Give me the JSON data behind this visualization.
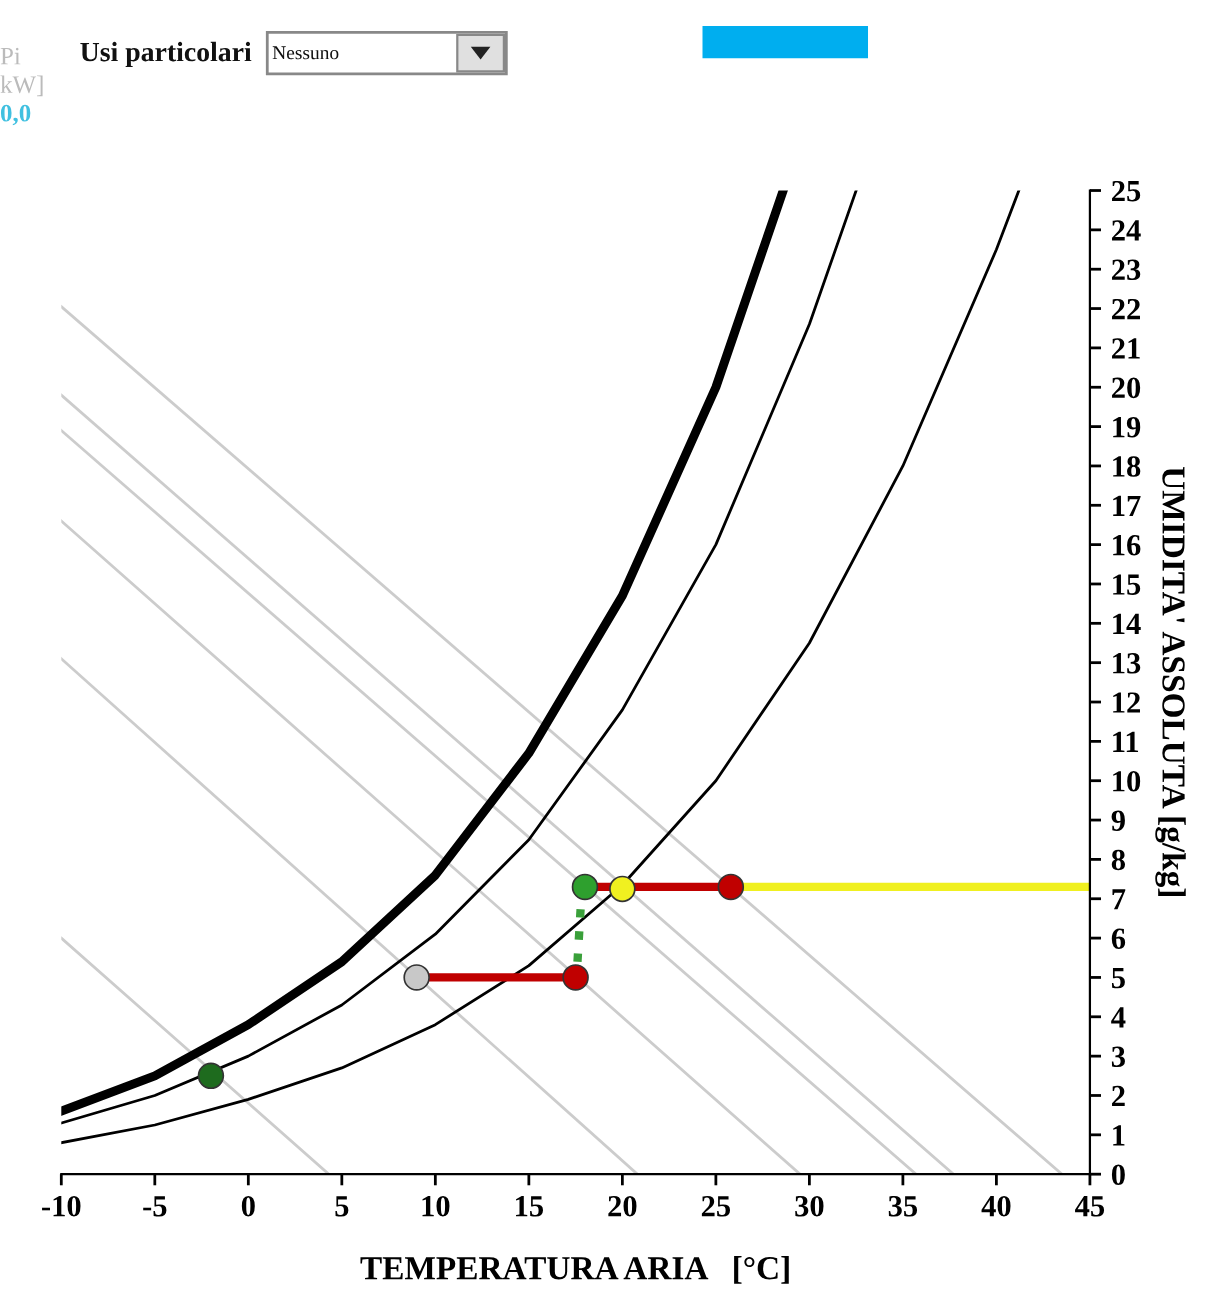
{
  "chart_data": {
    "type": "line",
    "xlabel": "TEMPERATURA ARIA   [°C]",
    "ylabel": "UMIDITA' ASSOLUTA [g/kg]",
    "xlim": [
      -10,
      45
    ],
    "ylim": [
      0,
      25
    ],
    "xticks": [
      -10,
      -5,
      0,
      5,
      10,
      15,
      20,
      25,
      30,
      35,
      40,
      45
    ],
    "yticks": [
      0,
      1,
      2,
      3,
      4,
      5,
      6,
      7,
      8,
      9,
      10,
      11,
      12,
      13,
      14,
      15,
      16,
      17,
      18,
      19,
      20,
      21,
      22,
      23,
      24,
      25
    ],
    "grid": false,
    "annotations": [
      "Pi",
      "kW]",
      "0,0",
      "Usi particolari",
      "Nessuno"
    ],
    "series": [
      {
        "color": "#cccccc",
        "x": [
          -10,
          4.3
        ],
        "values": [
          6.0,
          0
        ]
      },
      {
        "type": "line",
        "color": "#cccccc",
        "x": [
          -10,
          20.8
        ],
        "values": [
          13.1,
          0
        ]
      },
      {
        "type": "line",
        "color": "#cccccc",
        "x": [
          -10,
          29.5
        ],
        "values": [
          16.6,
          0
        ]
      },
      {
        "type": "line",
        "color": "#cccccc",
        "x": [
          -10,
          35.7
        ],
        "values": [
          18.9,
          0
        ]
      },
      {
        "type": "line",
        "color": "#cccccc",
        "x": [
          -10,
          37.7
        ],
        "values": [
          19.8,
          0
        ]
      },
      {
        "type": "line",
        "color": "#cccccc",
        "x": [
          -10,
          43.5
        ],
        "values": [
          22.05,
          0
        ]
      },
      {
        "type": "line",
        "color": "#000000",
        "x": [
          -10,
          -5,
          0,
          5,
          10,
          15,
          20,
          25,
          28.6
        ],
        "values": [
          1.6,
          2.5,
          3.8,
          5.4,
          7.6,
          10.7,
          14.7,
          20.0,
          25
        ]
      },
      {
        "type": "line",
        "color": "#000000",
        "x": [
          -10,
          -5,
          0,
          5,
          10,
          15,
          20,
          25,
          30,
          32.5
        ],
        "values": [
          1.3,
          2.0,
          3.0,
          4.3,
          6.1,
          8.5,
          11.8,
          16.0,
          21.6,
          25
        ]
      },
      {
        "type": "line",
        "color": "#000000",
        "x": [
          -10,
          -5,
          0,
          5,
          10,
          15,
          20,
          25,
          30,
          35,
          40,
          41.2
        ],
        "values": [
          0.8,
          1.25,
          1.9,
          2.7,
          3.8,
          5.3,
          7.35,
          10.0,
          13.5,
          18.0,
          23.5,
          25
        ]
      },
      {
        "type": "line",
        "color": "#f0f020",
        "x": [
          25.8,
          45
        ],
        "values": [
          7.3,
          7.3
        ]
      },
      {
        "type": "line",
        "color": "#c00000",
        "x": [
          9,
          17.5
        ],
        "values": [
          5,
          5
        ]
      },
      {
        "type": "line",
        "color": "#c00000",
        "x": [
          18,
          25.8
        ],
        "values": [
          7.3,
          7.3
        ]
      },
      {
        "type": "line",
        "color": "#3aa03a",
        "line_style": "dotted",
        "x": [
          17.6,
          17.8
        ],
        "values": [
          5.4,
          7.0
        ]
      },
      {
        "type": "scatter",
        "marker": "circle",
        "x": [
          -2,
          9,
          17.5,
          18,
          25.8,
          20
        ],
        "values": [
          2.5,
          5,
          5,
          7.3,
          7.3,
          7.25
        ],
        "colors": [
          "#1e6b1e",
          "#c8c8c8",
          "#c00000",
          "#2ea02e",
          "#c00000",
          "#f0f020"
        ]
      }
    ]
  }
}
